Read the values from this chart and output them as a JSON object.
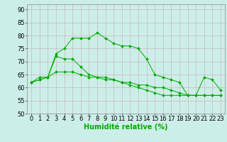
{
  "xlabel": "Humidité relative (%)",
  "bg_color": "#cceee8",
  "grid_color": "#c8b8b8",
  "line_color": "#00aa00",
  "xlim": [
    -0.5,
    23.5
  ],
  "ylim": [
    50,
    92
  ],
  "yticks": [
    50,
    55,
    60,
    65,
    70,
    75,
    80,
    85,
    90
  ],
  "xticks": [
    0,
    1,
    2,
    3,
    4,
    5,
    6,
    7,
    8,
    9,
    10,
    11,
    12,
    13,
    14,
    15,
    16,
    17,
    18,
    19,
    20,
    21,
    22,
    23
  ],
  "series1": [
    62,
    64,
    64,
    73,
    75,
    79,
    79,
    79,
    81,
    79,
    77,
    76,
    76,
    75,
    71,
    65,
    64,
    63,
    62,
    57,
    57,
    64,
    63,
    59
  ],
  "series2": [
    62,
    63,
    64,
    72,
    71,
    71,
    68,
    65,
    64,
    63,
    63,
    62,
    61,
    60,
    59,
    58,
    57,
    57,
    57,
    57,
    57,
    57,
    57,
    57
  ],
  "series3": [
    62,
    63,
    64,
    66,
    66,
    66,
    65,
    64,
    64,
    64,
    63,
    62,
    62,
    61,
    61,
    60,
    60,
    59,
    58,
    57,
    57,
    57,
    57,
    57
  ],
  "xlabel_fontsize": 7,
  "tick_fontsize": 6,
  "figw": 3.2,
  "figh": 2.0,
  "dpi": 100
}
